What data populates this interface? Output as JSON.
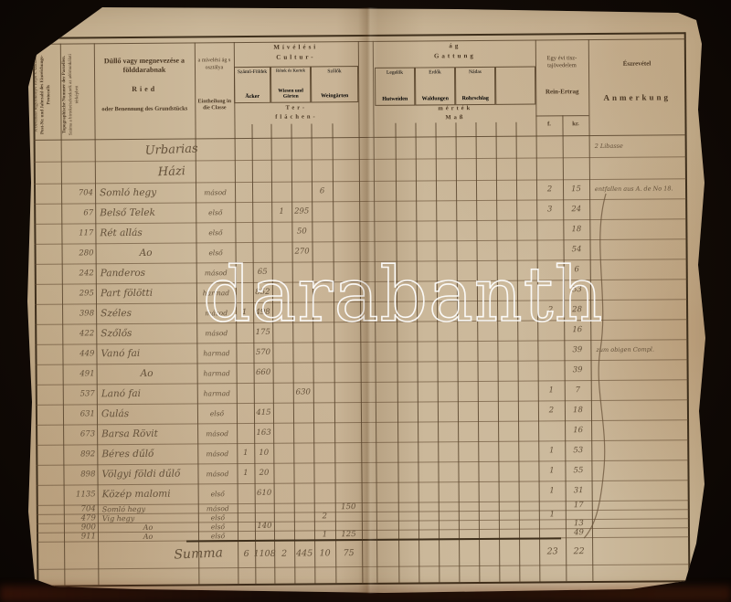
{
  "watermark": "darabanth",
  "colors": {
    "paper": "#c9b496",
    "ink": "#64513a",
    "grid_line": "#56422a",
    "background": "#120b06"
  },
  "header": {
    "protocol_col": {
      "hu": "A bevallási Jegyzőkönyv folyó s. száma.",
      "de": "Post-Nr. und Jahrzahl des Einreichungs-Protocolls"
    },
    "topo_col": {
      "de": "Topographische Nummer der Parzellen.",
      "hu": "Száma a birtokrészleteknek az adómunkálati térképben"
    },
    "ried_col": {
      "hu": "Düllő vagy megnevezése a földdarabnak",
      "mid": "Ried",
      "de": "oder Benennung des Grundstücks"
    },
    "class_col": {
      "hu": "a mívelési ág s osztálya",
      "de": "Eintheilung in die Classe"
    },
    "cultur_span": {
      "hu": "Mívélési",
      "de": "Cultur-"
    },
    "gattung_span": {
      "hu": "ág",
      "de": "Gattung"
    },
    "ter_span": {
      "hu": "Ter-",
      "de": "flächen-"
    },
    "mertek_span": {
      "hu": "mérték",
      "de": "Maß"
    },
    "col_szanto": {
      "hu": "Szántó-Földek",
      "de": "Äcker"
    },
    "col_retek": {
      "hu": "Rétek és Kertek",
      "de": "Wiesen und Gärten"
    },
    "col_szolok": {
      "hu": "Szőlők",
      "de": "Weingärten"
    },
    "col_legelok": {
      "hu": "Legelők",
      "de": "Hutweiden"
    },
    "col_erdok": {
      "hu": "Erdők",
      "de": "Waldungen"
    },
    "col_nadas": {
      "hu": "Nádas",
      "de": "Rohrschlag"
    },
    "rein_col": {
      "hu1": "Egy évi tisz-",
      "hu2": "tajövedelem",
      "de": "Rein-Ertrag",
      "f": "f.",
      "kr": "kr."
    },
    "anmerkung_col": {
      "hu": "Észrevétel",
      "de": "Anmerkung"
    }
  },
  "rows": [
    {
      "style": "title",
      "name": "Urbarias",
      "note": "2 Libasse"
    },
    {
      "style": "title",
      "name": "Házi"
    },
    {
      "no": "704",
      "name": "Somló hegy",
      "cls": "másod",
      "v5": "6",
      "f": "2",
      "kr": "15",
      "note": "entfallen aus A. de No 18."
    },
    {
      "no": "67",
      "name": "Belső Telek",
      "cls": "első",
      "v3": "1",
      "v4": "295",
      "f": "3",
      "kr": "24"
    },
    {
      "no": "117",
      "name": "Rét allás",
      "cls": "első",
      "v4": "50",
      "kr": "18"
    },
    {
      "no": "280",
      "name": "Ao",
      "cls": "első",
      "v4": "270",
      "kr": "54"
    },
    {
      "no": "242",
      "name": "Panderos",
      "cls": "másod",
      "v2": "65",
      "kr": "6"
    },
    {
      "no": "295",
      "name": "Part fölötti",
      "cls": "harmad",
      "v2": "852",
      "kr": "53"
    },
    {
      "no": "398",
      "name": "Széles",
      "cls": "másod",
      "v1": "1",
      "v2": "498",
      "f": "2",
      "kr": "28"
    },
    {
      "no": "422",
      "name": "Szőlős",
      "cls": "másod",
      "v2": "175",
      "kr": "16"
    },
    {
      "no": "449",
      "name": "Vanó fai",
      "cls": "harmad",
      "v2": "570",
      "kr": "39",
      "note": "zum obigen Compl."
    },
    {
      "no": "491",
      "name": "Ao",
      "cls": "harmad",
      "v2": "660",
      "kr": "39"
    },
    {
      "no": "537",
      "name": "Lanó fai",
      "cls": "harmad",
      "v4": "630",
      "f": "1",
      "kr": "7"
    },
    {
      "no": "631",
      "name": "Gulás",
      "cls": "első",
      "v2": "415",
      "f": "2",
      "kr": "18"
    },
    {
      "no": "673",
      "name": "Barsa Rövit",
      "cls": "másod",
      "v2": "163",
      "kr": "16"
    },
    {
      "no": "892",
      "name": "Béres dűlő",
      "cls": "másod",
      "v1": "1",
      "v2": "10",
      "f": "1",
      "kr": "53"
    },
    {
      "no": "898",
      "name": "Völgyi földi dűlő",
      "cls": "másod",
      "v1": "1",
      "v2": "20",
      "f": "1",
      "kr": "55"
    },
    {
      "no": "1135",
      "name": "Közép malomi",
      "cls": "első",
      "v2": "610",
      "f": "1",
      "kr": "31"
    },
    {
      "style": "small",
      "no": "704",
      "name": "Somló hegy",
      "cls": "másod",
      "v6": "150",
      "kr": "17"
    },
    {
      "style": "small",
      "no": "479",
      "name": "Vig hegy",
      "cls": "első",
      "v5": "2",
      "f": "1"
    },
    {
      "style": "small",
      "no": "900",
      "name": "Ao",
      "cls": "első",
      "v2": "140",
      "kr": "13"
    },
    {
      "style": "small",
      "no": "911",
      "name": "Ao",
      "cls": "első",
      "v5": "1",
      "v6": "125",
      "kr": "49"
    },
    {
      "style": "sum",
      "name": "Summa",
      "v1": "6",
      "v2": "1108",
      "v3": "2",
      "v4": "445",
      "v5": "10",
      "v6": "75",
      "f": "23",
      "kr": "22"
    }
  ]
}
